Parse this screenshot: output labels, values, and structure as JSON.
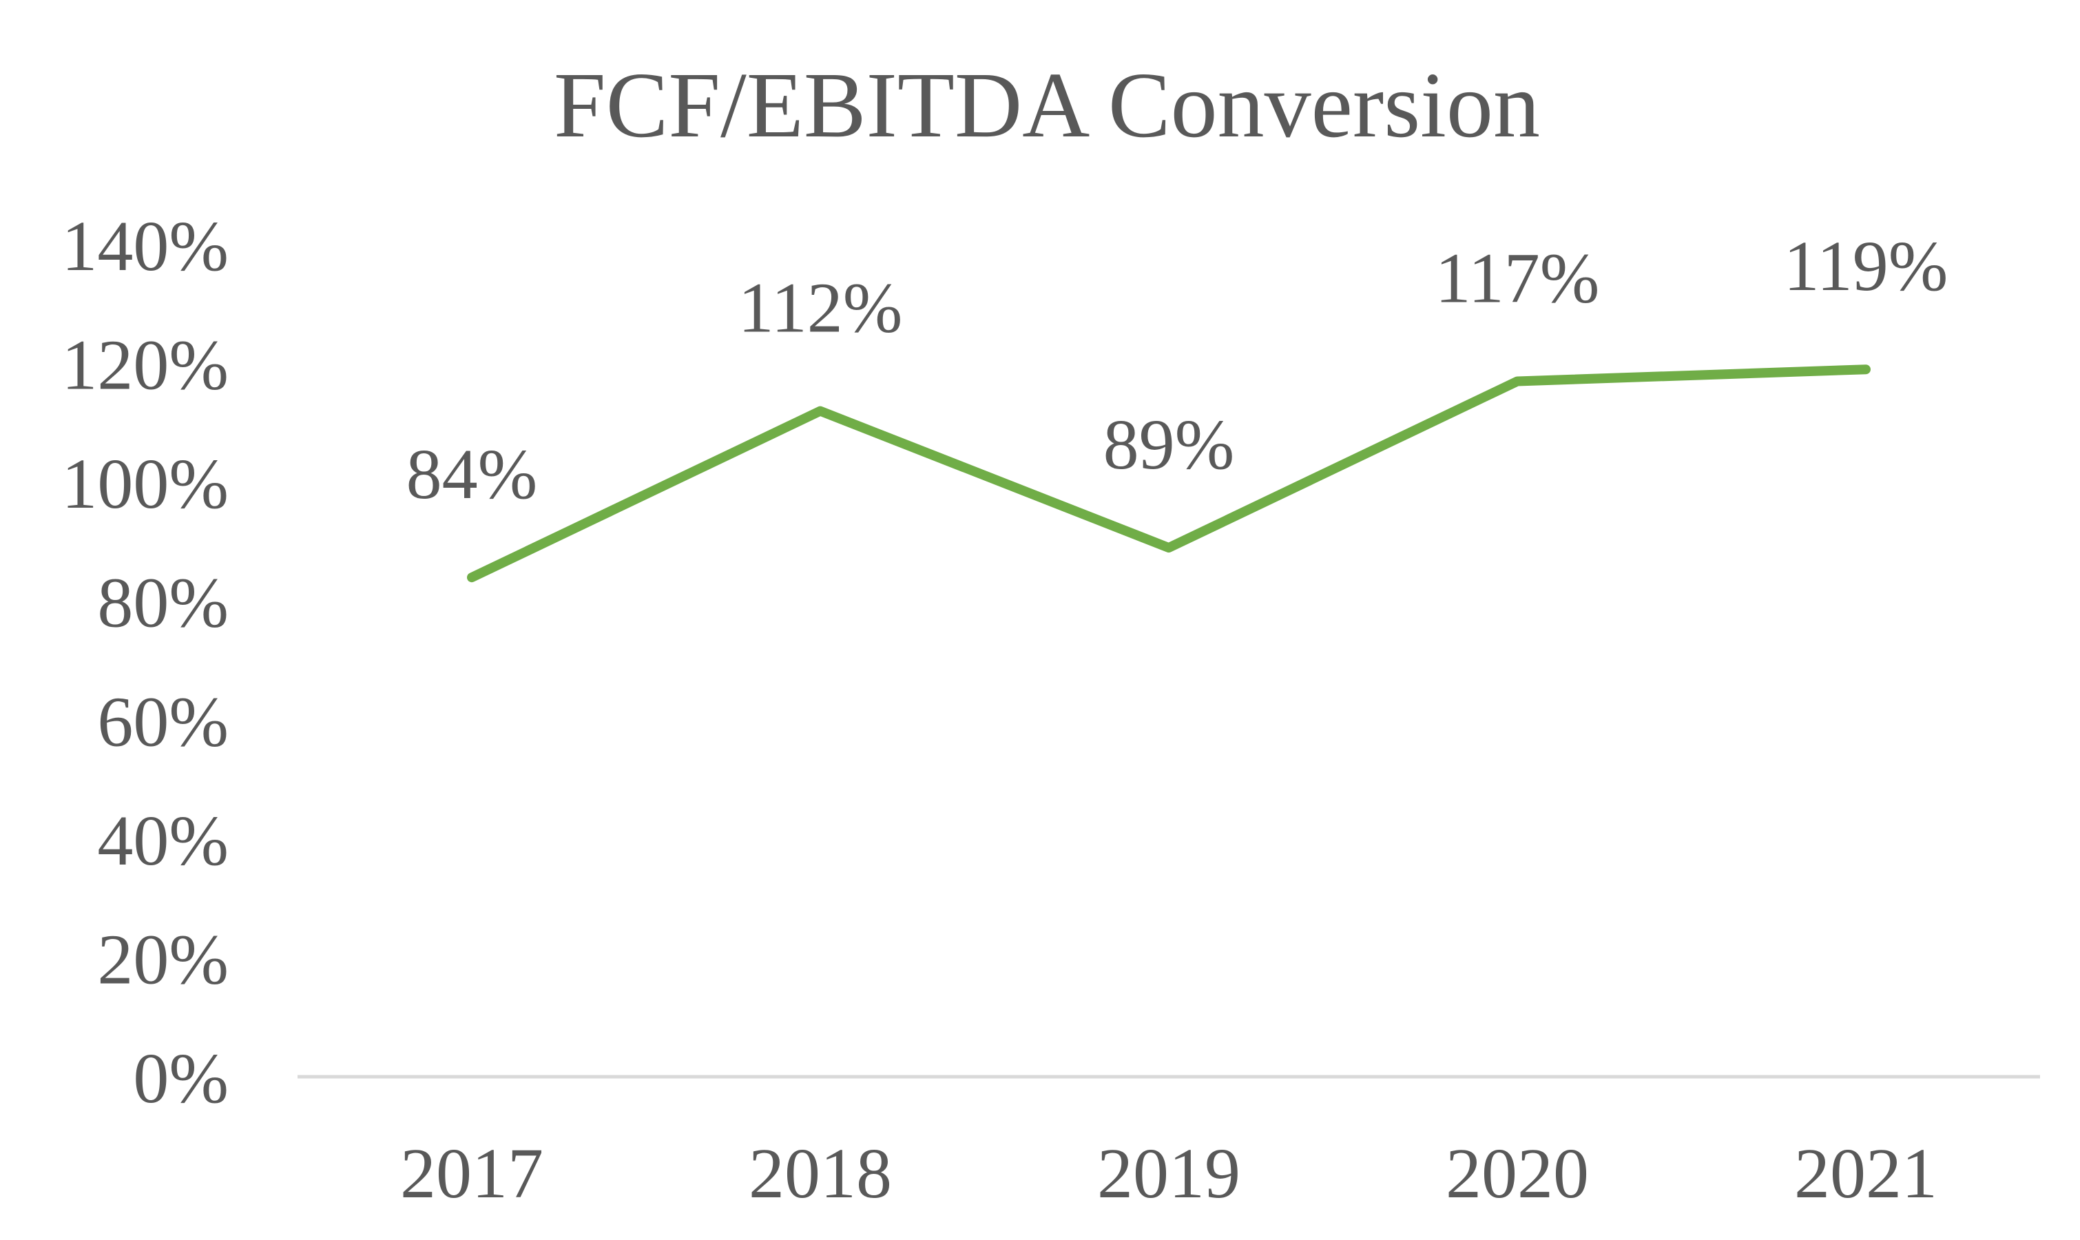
{
  "chart_data": {
    "type": "line",
    "title": "FCF/EBITDA Conversion",
    "xlabel": "",
    "ylabel": "",
    "categories": [
      "2017",
      "2018",
      "2019",
      "2020",
      "2021"
    ],
    "series": [
      {
        "name": "FCF/EBITDA Conversion",
        "values": [
          84,
          112,
          89,
          117,
          119
        ],
        "data_labels": [
          "84%",
          "112%",
          "89%",
          "117%",
          "119%"
        ],
        "color": "#70AD47"
      }
    ],
    "ylim": [
      0,
      140
    ],
    "yticks": [
      0,
      20,
      40,
      60,
      80,
      100,
      120,
      140
    ],
    "ytick_labels": [
      "0%",
      "20%",
      "40%",
      "60%",
      "80%",
      "100%",
      "120%",
      "140%"
    ],
    "grid": false,
    "legend": "none",
    "axis_color": "#D9D9D9",
    "text_color": "#595959"
  }
}
